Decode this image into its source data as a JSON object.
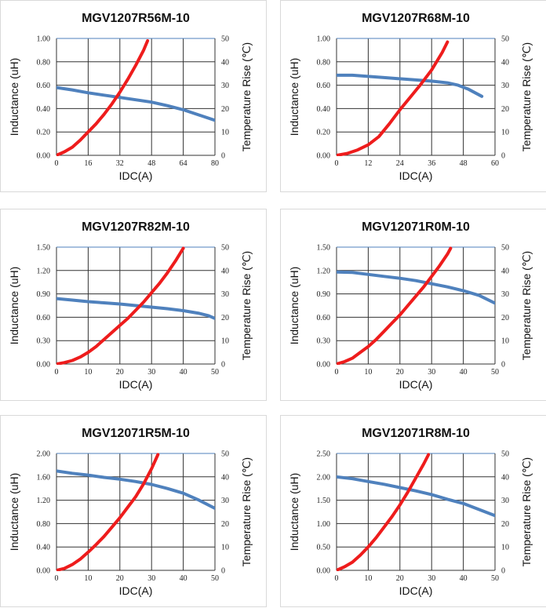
{
  "chart_data": [
    {
      "type": "line",
      "title": "MGV1207R56M-10",
      "xlabel": "IDC(A)",
      "ylabel": "Inductance (uH)",
      "y2label": "Temperature Rise (℃)",
      "xlim": [
        0,
        80
      ],
      "x_ticks": [
        "0",
        "16",
        "32",
        "48",
        "64",
        "80"
      ],
      "ylim": [
        0,
        1.0
      ],
      "y_ticks": [
        "0.00",
        "0.20",
        "0.40",
        "0.60",
        "0.80",
        "1.00"
      ],
      "y2lim": [
        0,
        50
      ],
      "y2_ticks": [
        "0",
        "10",
        "20",
        "30",
        "40",
        "50"
      ],
      "grid": true,
      "series": [
        {
          "axis": "left",
          "color": "#4f81bd",
          "x": [
            0,
            8,
            16,
            24,
            32,
            40,
            48,
            56,
            64,
            72,
            80
          ],
          "y": [
            0.58,
            0.56,
            0.535,
            0.515,
            0.495,
            0.475,
            0.455,
            0.425,
            0.39,
            0.345,
            0.3
          ]
        },
        {
          "axis": "right",
          "color": "#ee1c1c",
          "x": [
            0,
            4,
            8,
            12,
            16,
            20,
            24,
            28,
            32,
            36,
            40,
            44,
            46
          ],
          "y": [
            0,
            1.5,
            3.5,
            6.5,
            10,
            13.5,
            17.5,
            22,
            27,
            32.5,
            38.5,
            45,
            49
          ]
        }
      ]
    },
    {
      "type": "line",
      "title": "MGV1207R68M-10",
      "xlabel": "IDC(A)",
      "ylabel": "Inductance (uH)",
      "y2label": "Temperature Rise (℃)",
      "xlim": [
        0,
        60
      ],
      "x_ticks": [
        "0",
        "12",
        "24",
        "36",
        "48",
        "60"
      ],
      "ylim": [
        0,
        1.0
      ],
      "y_ticks": [
        "0.00",
        "0.20",
        "0.40",
        "0.60",
        "0.80",
        "1.00"
      ],
      "y2lim": [
        0,
        50
      ],
      "y2_ticks": [
        "0",
        "10",
        "20",
        "30",
        "40",
        "50"
      ],
      "grid": true,
      "series": [
        {
          "axis": "left",
          "color": "#4f81bd",
          "x": [
            0,
            6,
            12,
            18,
            24,
            30,
            36,
            42,
            46,
            50,
            55
          ],
          "y": [
            0.685,
            0.685,
            0.675,
            0.665,
            0.655,
            0.645,
            0.635,
            0.62,
            0.6,
            0.565,
            0.505
          ]
        },
        {
          "axis": "right",
          "color": "#ee1c1c",
          "x": [
            0,
            4,
            8,
            12,
            16,
            20,
            24,
            28,
            32,
            36,
            40,
            42
          ],
          "y": [
            0,
            0.8,
            2.3,
            4.5,
            8,
            13.5,
            19.5,
            25,
            30.5,
            36.5,
            44,
            48.5
          ]
        }
      ]
    },
    {
      "type": "line",
      "title": "MGV1207R82M-10",
      "xlabel": "IDC(A)",
      "ylabel": "Inductance (uH)",
      "y2label": "Temperature Rise (℃)",
      "xlim": [
        0,
        50
      ],
      "x_ticks": [
        "0",
        "10",
        "20",
        "30",
        "40",
        "50"
      ],
      "ylim": [
        0,
        1.5
      ],
      "y_ticks": [
        "0.00",
        "0.30",
        "0.60",
        "0.90",
        "1.20",
        "1.50"
      ],
      "y2lim": [
        0,
        50
      ],
      "y2_ticks": [
        "0",
        "10",
        "20",
        "30",
        "40",
        "50"
      ],
      "grid": true,
      "series": [
        {
          "axis": "left",
          "color": "#4f81bd",
          "x": [
            0,
            5,
            10,
            15,
            20,
            25,
            30,
            35,
            40,
            45,
            48,
            50
          ],
          "y": [
            0.84,
            0.82,
            0.8,
            0.785,
            0.77,
            0.75,
            0.73,
            0.71,
            0.685,
            0.65,
            0.62,
            0.585
          ]
        },
        {
          "axis": "right",
          "color": "#ee1c1c",
          "x": [
            0,
            2.5,
            5,
            7.5,
            10,
            12.5,
            15,
            17.5,
            20,
            22.5,
            25,
            27.5,
            30,
            32.5,
            35,
            37.5,
            40
          ],
          "y": [
            0,
            0.6,
            1.5,
            3,
            5,
            7.5,
            10.5,
            13.5,
            16.5,
            19.5,
            23,
            26.5,
            30.5,
            34.5,
            39,
            44,
            49.5
          ]
        }
      ]
    },
    {
      "type": "line",
      "title": "MGV12071R0M-10",
      "xlabel": "IDC(A)",
      "ylabel": "Inductance (uH)",
      "y2label": "Temperature Rise (℃)",
      "xlim": [
        0,
        50
      ],
      "x_ticks": [
        "0",
        "10",
        "20",
        "30",
        "40",
        "50"
      ],
      "ylim": [
        0,
        1.5
      ],
      "y_ticks": [
        "0.00",
        "0.30",
        "0.60",
        "0.90",
        "1.20",
        "1.50"
      ],
      "y2lim": [
        0,
        50
      ],
      "y2_ticks": [
        "0",
        "10",
        "20",
        "30",
        "40",
        "50"
      ],
      "grid": true,
      "series": [
        {
          "axis": "left",
          "color": "#4f81bd",
          "x": [
            0,
            5,
            10,
            15,
            20,
            25,
            30,
            35,
            40,
            45,
            50
          ],
          "y": [
            1.18,
            1.175,
            1.15,
            1.125,
            1.1,
            1.07,
            1.03,
            0.99,
            0.94,
            0.88,
            0.78
          ]
        },
        {
          "axis": "right",
          "color": "#ee1c1c",
          "x": [
            0,
            2.5,
            5,
            7.5,
            10,
            12.5,
            15,
            17.5,
            20,
            22.5,
            25,
            27.5,
            30,
            32.5,
            35,
            36
          ],
          "y": [
            0,
            1,
            2.5,
            5,
            7.5,
            10.5,
            14,
            17.5,
            21,
            25,
            29,
            33,
            37.5,
            42,
            47,
            49.5
          ]
        }
      ]
    },
    {
      "type": "line",
      "title": "MGV12071R5M-10",
      "xlabel": "IDC(A)",
      "ylabel": "Inductance (uH)",
      "y2label": "Temperature Rise (℃)",
      "xlim": [
        0,
        50
      ],
      "x_ticks": [
        "0",
        "10",
        "20",
        "30",
        "40",
        "50"
      ],
      "ylim": [
        0,
        2.0
      ],
      "y_ticks": [
        "0.00",
        "0.40",
        "0.80",
        "1.20",
        "1.60",
        "2.00"
      ],
      "y2lim": [
        0,
        50
      ],
      "y2_ticks": [
        "0",
        "10",
        "20",
        "30",
        "40",
        "50"
      ],
      "grid": true,
      "series": [
        {
          "axis": "left",
          "color": "#4f81bd",
          "x": [
            0,
            5,
            10,
            15,
            20,
            25,
            30,
            35,
            40,
            45,
            50
          ],
          "y": [
            1.7,
            1.66,
            1.63,
            1.59,
            1.56,
            1.52,
            1.47,
            1.4,
            1.32,
            1.2,
            1.06
          ]
        },
        {
          "axis": "right",
          "color": "#ee1c1c",
          "x": [
            0,
            2.5,
            5,
            7.5,
            10,
            12.5,
            15,
            17.5,
            20,
            22.5,
            25,
            27.5,
            30,
            32
          ],
          "y": [
            0,
            0.8,
            2.5,
            4.8,
            7.8,
            11,
            14.5,
            18.5,
            22.5,
            27,
            31.5,
            37,
            43.5,
            49.5
          ]
        }
      ]
    },
    {
      "type": "line",
      "title": "MGV12071R8M-10",
      "xlabel": "IDC(A)",
      "ylabel": "Inductance (uH)",
      "y2label": "Temperature Rise (℃)",
      "xlim": [
        0,
        50
      ],
      "x_ticks": [
        "0",
        "10",
        "20",
        "30",
        "40",
        "50"
      ],
      "ylim": [
        0,
        2.5
      ],
      "y_ticks": [
        "0.00",
        "0.50",
        "1.00",
        "1.50",
        "2.00",
        "2.50"
      ],
      "y2lim": [
        0,
        50
      ],
      "y2_ticks": [
        "0",
        "10",
        "20",
        "30",
        "40",
        "50"
      ],
      "grid": true,
      "series": [
        {
          "axis": "left",
          "color": "#4f81bd",
          "x": [
            0,
            5,
            10,
            15,
            20,
            25,
            30,
            35,
            40,
            45,
            50
          ],
          "y": [
            2.0,
            1.96,
            1.9,
            1.84,
            1.77,
            1.7,
            1.62,
            1.52,
            1.43,
            1.3,
            1.17
          ]
        },
        {
          "axis": "right",
          "color": "#ee1c1c",
          "x": [
            0,
            2.5,
            5,
            7.5,
            10,
            12.5,
            15,
            17.5,
            20,
            22.5,
            25,
            27.5,
            29
          ],
          "y": [
            0,
            1.5,
            3.5,
            6.5,
            10,
            14,
            18.5,
            23,
            28,
            33.5,
            39.5,
            45.5,
            49.5
          ]
        }
      ]
    }
  ]
}
